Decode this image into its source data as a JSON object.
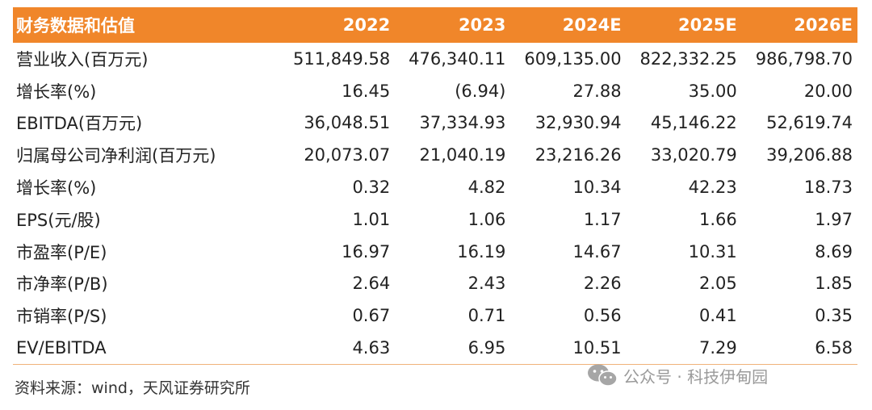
{
  "table": {
    "headers": [
      "财务数据和估值",
      "2022",
      "2023",
      "2024E",
      "2025E",
      "2026E"
    ],
    "rows": [
      [
        "营业收入(百万元)",
        "511,849.58",
        "476,340.11",
        "609,135.00",
        "822,332.25",
        "986,798.70"
      ],
      [
        "增长率(%)",
        "16.45",
        "(6.94)",
        "27.88",
        "35.00",
        "20.00"
      ],
      [
        "EBITDA(百万元)",
        "36,048.51",
        "37,334.93",
        "32,930.94",
        "45,146.22",
        "52,619.74"
      ],
      [
        "归属母公司净利润(百万元)",
        "20,073.07",
        "21,040.19",
        "23,216.26",
        "33,020.79",
        "39,206.88"
      ],
      [
        "增长率(%)",
        "0.32",
        "4.82",
        "10.34",
        "42.23",
        "18.73"
      ],
      [
        "EPS(元/股)",
        "1.01",
        "1.06",
        "1.17",
        "1.66",
        "1.97"
      ],
      [
        "市盈率(P/E)",
        "16.97",
        "16.19",
        "14.67",
        "10.31",
        "8.69"
      ],
      [
        "市净率(P/B)",
        "2.64",
        "2.43",
        "2.26",
        "2.05",
        "1.85"
      ],
      [
        "市销率(P/S)",
        "0.67",
        "0.71",
        "0.56",
        "0.41",
        "0.35"
      ],
      [
        "EV/EBITDA",
        "4.63",
        "6.95",
        "10.51",
        "7.29",
        "6.58"
      ]
    ]
  },
  "source": "资料来源：wind，天风证券研究所",
  "watermark": {
    "icon": "wechat-icon",
    "text": "公众号 · 科技伊甸园"
  },
  "colors": {
    "header_bg": "#f0862a",
    "header_text": "#ffffff"
  }
}
